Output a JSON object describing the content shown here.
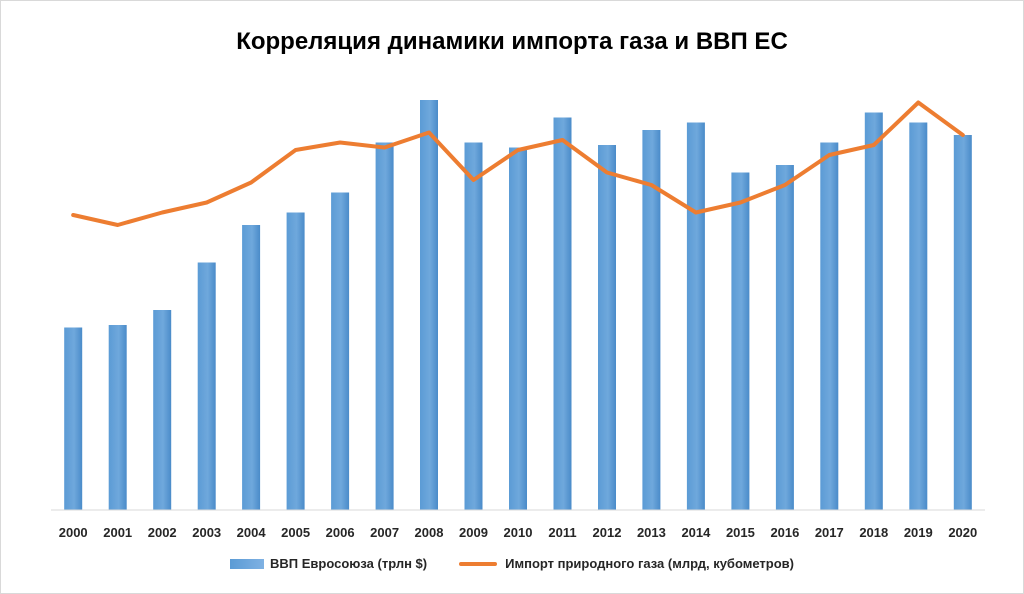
{
  "chart_data": {
    "type": "bar+line",
    "title": "Корреляция динамики импорта газа и ВВП ЕС",
    "categories": [
      "2000",
      "2001",
      "2002",
      "2003",
      "2004",
      "2005",
      "2006",
      "2007",
      "2008",
      "2009",
      "2010",
      "2011",
      "2012",
      "2013",
      "2014",
      "2015",
      "2016",
      "2017",
      "2018",
      "2019",
      "2020"
    ],
    "series": [
      {
        "name": "ВВП Евросоюза (трлн $)",
        "kind": "bar",
        "color": "#5b9bd5",
        "values": [
          7.3,
          7.4,
          8.0,
          9.9,
          11.4,
          11.9,
          12.7,
          14.7,
          16.4,
          14.7,
          14.5,
          15.7,
          14.6,
          15.2,
          15.5,
          13.5,
          13.8,
          14.7,
          15.9,
          15.5,
          15.0
        ]
      },
      {
        "name": "Импорт природного газа (млрд, кубометров)",
        "kind": "line",
        "color": "#ed7d31",
        "values": [
          11.8,
          11.4,
          11.9,
          12.3,
          13.1,
          14.4,
          14.7,
          14.5,
          15.1,
          13.2,
          14.4,
          14.8,
          13.5,
          13.0,
          11.9,
          12.3,
          13.0,
          14.2,
          14.6,
          16.3,
          15.0
        ]
      }
    ],
    "ylim": [
      0,
      18
    ],
    "xlabel": "",
    "ylabel": "",
    "grid": false,
    "legend": "bottom"
  }
}
